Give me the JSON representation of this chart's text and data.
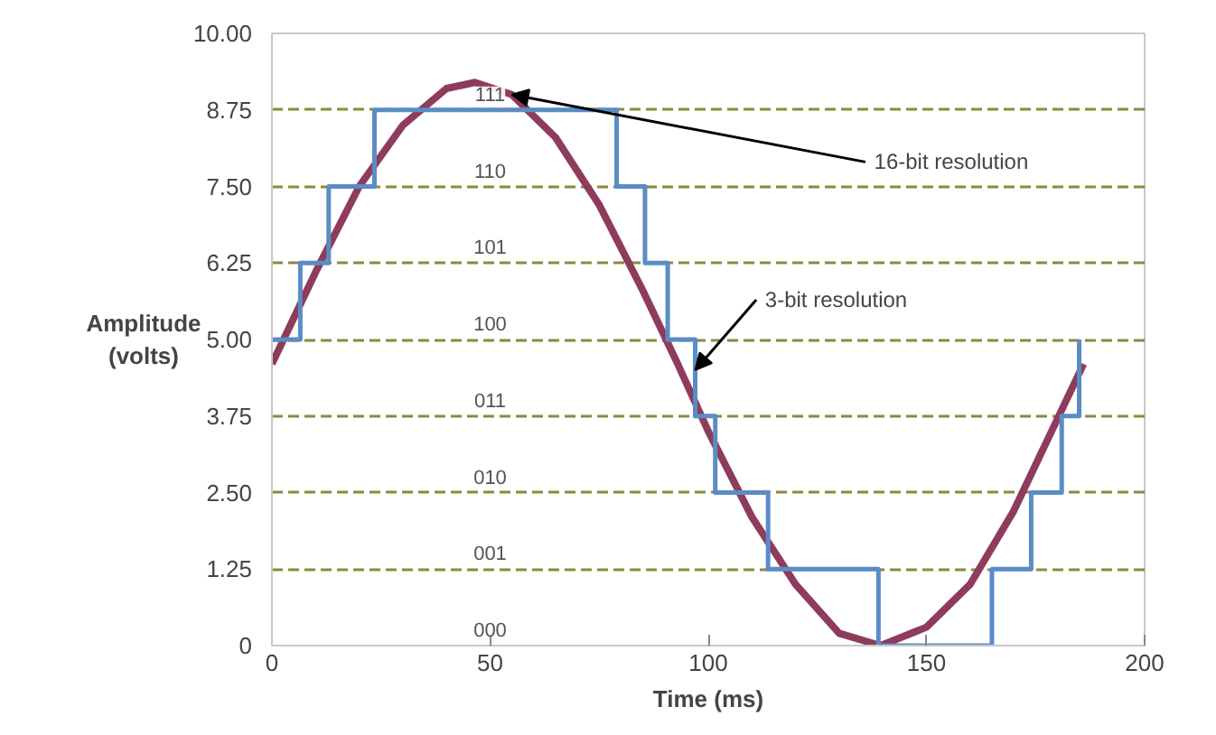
{
  "chart_data": {
    "type": "line",
    "xlabel": "Time (ms)",
    "ylabel": "Amplitude\n(volts)",
    "xlim": [
      0,
      200
    ],
    "xticks": [
      0,
      50,
      100,
      150,
      200
    ],
    "ylim": [
      0,
      10
    ],
    "yticks": [
      0,
      {
        "value": 1.25,
        "label": "1.25"
      },
      {
        "value": 2.5,
        "label": "2.50"
      },
      {
        "value": 3.75,
        "label": "3.75"
      },
      {
        "value": 5,
        "label": "5.00"
      },
      {
        "value": 6.25,
        "label": "6.25"
      },
      {
        "value": 7.5,
        "label": "7.50"
      },
      {
        "value": 8.75,
        "label": "8.75"
      },
      {
        "value": 10,
        "label": "10.00"
      }
    ],
    "grid": "y",
    "marker": "none",
    "line_style": "solid",
    "series": [
      {
        "color": "#8e3b5e",
        "x": [
          0,
          10,
          20,
          30,
          40,
          46.5,
          55,
          65,
          75,
          85,
          93,
          100,
          110,
          120,
          130,
          139.5,
          150,
          160,
          170,
          180,
          186
        ],
        "values": [
          4.6,
          6.1,
          7.5,
          8.5,
          9.1,
          9.2,
          9.0,
          8.3,
          7.2,
          5.8,
          4.6,
          3.5,
          2.1,
          1.0,
          0.2,
          0,
          0.3,
          1.0,
          2.2,
          3.7,
          4.6
        ]
      },
      {
        "type": "step",
        "color": "#5a8cc6",
        "x": [
          0,
          6.5,
          13,
          23.5,
          79,
          85.5,
          90.7,
          97,
          101.6,
          113.7,
          139,
          165,
          174,
          181,
          185
        ],
        "values": [
          5,
          6.25,
          7.5,
          8.75,
          7.5,
          6.25,
          5,
          3.75,
          2.5,
          1.25,
          0,
          1.25,
          2.5,
          3.75,
          5
        ]
      }
    ],
    "annotations": [
      "000",
      "001",
      "010",
      "011",
      "100",
      "101",
      "110",
      "111",
      {
        "text": "16-bit resolution",
        "x": 55,
        "y": 9.0
      },
      {
        "text": "3-bit resolution",
        "x": 97,
        "y": 4.5
      }
    ]
  }
}
